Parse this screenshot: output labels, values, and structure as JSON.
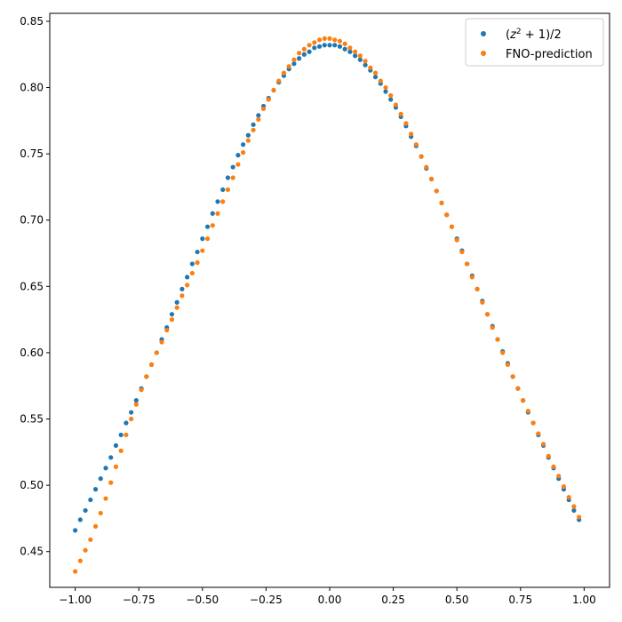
{
  "chart_data": {
    "type": "scatter",
    "xlim": [
      -1.1,
      1.1
    ],
    "ylim": [
      0.423,
      0.856
    ],
    "xticks": [
      "-1.00",
      "-0.75",
      "-0.50",
      "-0.25",
      "0.00",
      "0.25",
      "0.50",
      "0.75",
      "1.00"
    ],
    "yticks": [
      "0.45",
      "0.50",
      "0.55",
      "0.60",
      "0.65",
      "0.70",
      "0.75",
      "0.80",
      "0.85"
    ],
    "legend_position": "top-right",
    "grid": false,
    "series": [
      {
        "name": "(z^2 + 1)/2",
        "color": "#1f77b4",
        "x": [
          -1.0,
          -0.98,
          -0.96,
          -0.94,
          -0.92,
          -0.9,
          -0.88,
          -0.86,
          -0.84,
          -0.82,
          -0.8,
          -0.78,
          -0.76,
          -0.74,
          -0.72,
          -0.7,
          -0.68,
          -0.66,
          -0.64,
          -0.62,
          -0.6,
          -0.58,
          -0.56,
          -0.54,
          -0.52,
          -0.5,
          -0.48,
          -0.46,
          -0.44,
          -0.42,
          -0.4,
          -0.38,
          -0.36,
          -0.34,
          -0.32,
          -0.3,
          -0.28,
          -0.26,
          -0.24,
          -0.22,
          -0.2,
          -0.18,
          -0.16,
          -0.14,
          -0.12,
          -0.1,
          -0.08,
          -0.06,
          -0.04,
          -0.02,
          0.0,
          0.02,
          0.04,
          0.06,
          0.08,
          0.1,
          0.12,
          0.14,
          0.16,
          0.18,
          0.2,
          0.22,
          0.24,
          0.26,
          0.28,
          0.3,
          0.32,
          0.34,
          0.36,
          0.38,
          0.4,
          0.42,
          0.44,
          0.46,
          0.48,
          0.5,
          0.52,
          0.54,
          0.56,
          0.58,
          0.6,
          0.62,
          0.64,
          0.66,
          0.68,
          0.7,
          0.72,
          0.74,
          0.76,
          0.78,
          0.8,
          0.82,
          0.84,
          0.86,
          0.88,
          0.9,
          0.92,
          0.94,
          0.96,
          0.98
        ],
        "y": [
          0.466,
          0.474,
          0.481,
          0.489,
          0.497,
          0.505,
          0.513,
          0.521,
          0.53,
          0.538,
          0.547,
          0.555,
          0.564,
          0.573,
          0.582,
          0.591,
          0.6,
          0.61,
          0.619,
          0.629,
          0.638,
          0.648,
          0.657,
          0.667,
          0.676,
          0.686,
          0.695,
          0.705,
          0.714,
          0.723,
          0.732,
          0.74,
          0.749,
          0.757,
          0.764,
          0.772,
          0.779,
          0.786,
          0.792,
          0.798,
          0.804,
          0.809,
          0.814,
          0.818,
          0.822,
          0.825,
          0.827,
          0.83,
          0.831,
          0.832,
          0.832,
          0.832,
          0.831,
          0.829,
          0.827,
          0.824,
          0.821,
          0.817,
          0.813,
          0.808,
          0.803,
          0.797,
          0.791,
          0.785,
          0.778,
          0.771,
          0.763,
          0.756,
          0.748,
          0.739,
          0.731,
          0.722,
          0.713,
          0.704,
          0.695,
          0.686,
          0.677,
          0.667,
          0.658,
          0.648,
          0.639,
          0.629,
          0.62,
          0.61,
          0.601,
          0.592,
          0.582,
          0.573,
          0.564,
          0.555,
          0.547,
          0.538,
          0.53,
          0.521,
          0.513,
          0.505,
          0.497,
          0.489,
          0.481,
          0.474
        ]
      },
      {
        "name": "FNO-prediction",
        "color": "#ff7f0e",
        "x": [
          -1.0,
          -0.98,
          -0.96,
          -0.94,
          -0.92,
          -0.9,
          -0.88,
          -0.86,
          -0.84,
          -0.82,
          -0.8,
          -0.78,
          -0.76,
          -0.74,
          -0.72,
          -0.7,
          -0.68,
          -0.66,
          -0.64,
          -0.62,
          -0.6,
          -0.58,
          -0.56,
          -0.54,
          -0.52,
          -0.5,
          -0.48,
          -0.46,
          -0.44,
          -0.42,
          -0.4,
          -0.38,
          -0.36,
          -0.34,
          -0.32,
          -0.3,
          -0.28,
          -0.26,
          -0.24,
          -0.22,
          -0.2,
          -0.18,
          -0.16,
          -0.14,
          -0.12,
          -0.1,
          -0.08,
          -0.06,
          -0.04,
          -0.02,
          0.0,
          0.02,
          0.04,
          0.06,
          0.08,
          0.1,
          0.12,
          0.14,
          0.16,
          0.18,
          0.2,
          0.22,
          0.24,
          0.26,
          0.28,
          0.3,
          0.32,
          0.34,
          0.36,
          0.38,
          0.4,
          0.42,
          0.44,
          0.46,
          0.48,
          0.5,
          0.52,
          0.54,
          0.56,
          0.58,
          0.6,
          0.62,
          0.64,
          0.66,
          0.68,
          0.7,
          0.72,
          0.74,
          0.76,
          0.78,
          0.8,
          0.82,
          0.84,
          0.86,
          0.88,
          0.9,
          0.92,
          0.94,
          0.96,
          0.98
        ],
        "y": [
          0.435,
          0.443,
          0.451,
          0.459,
          0.469,
          0.479,
          0.49,
          0.502,
          0.514,
          0.526,
          0.538,
          0.55,
          0.561,
          0.572,
          0.582,
          0.591,
          0.6,
          0.608,
          0.617,
          0.625,
          0.634,
          0.643,
          0.651,
          0.66,
          0.668,
          0.677,
          0.686,
          0.696,
          0.705,
          0.714,
          0.723,
          0.732,
          0.742,
          0.751,
          0.76,
          0.768,
          0.776,
          0.784,
          0.791,
          0.798,
          0.805,
          0.811,
          0.816,
          0.821,
          0.826,
          0.829,
          0.832,
          0.834,
          0.836,
          0.837,
          0.837,
          0.836,
          0.835,
          0.833,
          0.83,
          0.827,
          0.824,
          0.82,
          0.815,
          0.811,
          0.805,
          0.8,
          0.794,
          0.787,
          0.78,
          0.773,
          0.765,
          0.757,
          0.748,
          0.74,
          0.731,
          0.722,
          0.713,
          0.704,
          0.695,
          0.685,
          0.676,
          0.667,
          0.657,
          0.648,
          0.638,
          0.629,
          0.619,
          0.61,
          0.6,
          0.591,
          0.582,
          0.573,
          0.564,
          0.556,
          0.547,
          0.539,
          0.531,
          0.522,
          0.514,
          0.507,
          0.499,
          0.491,
          0.484,
          0.476
        ]
      }
    ]
  }
}
